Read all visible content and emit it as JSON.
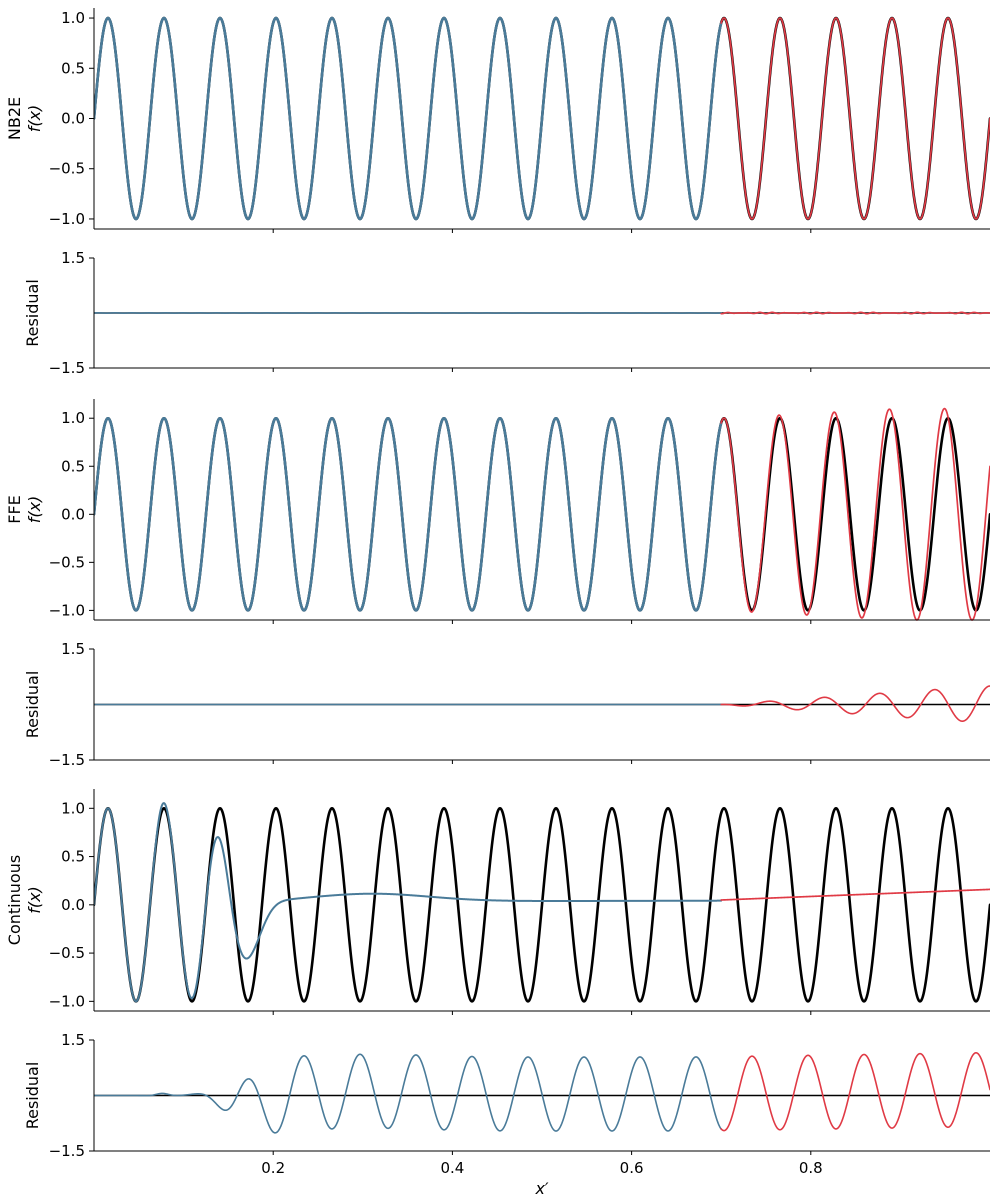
{
  "chart_data": [
    {
      "type": "line",
      "ylabel_lines": [
        "NB2E",
        "f(x)"
      ],
      "ylim": [
        -1.1,
        1.1
      ],
      "yticks": [
        {
          "value": 1.0,
          "label": "1.0"
        },
        {
          "value": 0.5,
          "label": "0.5"
        },
        {
          "value": 0.0,
          "label": "0.0"
        },
        {
          "value": -0.5,
          "label": "−0.5"
        },
        {
          "value": -1.0,
          "label": "−1.0"
        }
      ],
      "xlim": [
        0,
        1
      ],
      "x_split": 0.7,
      "truth": {
        "color": "#000000",
        "frequency": 16,
        "amplitude": 1.0
      },
      "interpolation": {
        "color": "#4a7b99",
        "model": "exact"
      },
      "extrapolation": {
        "color": "#e03a45",
        "model": "exact"
      }
    },
    {
      "type": "line",
      "ylabel": "Residual",
      "ylim": [
        -1.5,
        1.5
      ],
      "yticks": [
        {
          "value": 1.5,
          "label": "1.5"
        },
        {
          "value": -1.5,
          "label": "−1.5"
        }
      ],
      "xlim": [
        0,
        1
      ],
      "x_split": 0.7,
      "zero_line_color": "#000000",
      "interpolation": {
        "color": "#4a7b99",
        "residual_amplitude": 0.0
      },
      "extrapolation": {
        "color": "#e03a45",
        "residual_amplitude": 0.02
      }
    },
    {
      "type": "line",
      "ylabel_lines": [
        "FFE",
        "f(x)"
      ],
      "ylim": [
        -1.1,
        1.2
      ],
      "yticks": [
        {
          "value": 1.0,
          "label": "1.0"
        },
        {
          "value": 0.5,
          "label": "0.5"
        },
        {
          "value": 0.0,
          "label": "0.0"
        },
        {
          "value": -0.5,
          "label": "−0.5"
        },
        {
          "value": -1.0,
          "label": "−1.0"
        }
      ],
      "xlim": [
        0,
        1
      ],
      "x_split": 0.7,
      "truth": {
        "color": "#000000",
        "frequency": 16,
        "amplitude": 1.0
      },
      "interpolation": {
        "color": "#4a7b99",
        "model": "exact"
      },
      "extrapolation": {
        "color": "#e03a45",
        "model": "drifting",
        "frequency": 16.25,
        "amplitude_end": 1.1
      }
    },
    {
      "type": "line",
      "ylabel": "Residual",
      "ylim": [
        -1.5,
        1.5
      ],
      "yticks": [
        {
          "value": 1.5,
          "label": "1.5"
        },
        {
          "value": -1.5,
          "label": "−1.5"
        }
      ],
      "xlim": [
        0,
        1
      ],
      "x_split": 0.7,
      "zero_line_color": "#000000",
      "interpolation": {
        "color": "#4a7b99",
        "residual_amplitude": 0.0
      },
      "extrapolation": {
        "color": "#e03a45",
        "residual_amplitude_end": 0.48
      }
    },
    {
      "type": "line",
      "ylabel_lines": [
        "Continuous",
        "f(x)"
      ],
      "ylim": [
        -1.1,
        1.2
      ],
      "yticks": [
        {
          "value": 1.0,
          "label": "1.0"
        },
        {
          "value": 0.5,
          "label": "0.5"
        },
        {
          "value": 0.0,
          "label": "0.0"
        },
        {
          "value": -0.5,
          "label": "−0.5"
        },
        {
          "value": -1.0,
          "label": "−1.0"
        }
      ],
      "xlim": [
        0,
        1
      ],
      "x_split": 0.7,
      "truth": {
        "color": "#000000",
        "frequency": 16,
        "amplitude": 1.0
      },
      "interpolation": {
        "color": "#4a7b99",
        "model": "smooth-fit"
      },
      "extrapolation": {
        "color": "#e03a45",
        "model": "linear",
        "start": 0.05,
        "end": 0.16
      }
    },
    {
      "type": "line",
      "ylabel": "Residual",
      "ylim": [
        -1.5,
        1.5
      ],
      "yticks": [
        {
          "value": 1.5,
          "label": "1.5"
        },
        {
          "value": -1.5,
          "label": "−1.5"
        }
      ],
      "xlim": [
        0,
        1
      ],
      "x_split": 0.7,
      "zero_line_color": "#000000",
      "xlabel": "x′",
      "xticks": [
        {
          "value": 0.2,
          "label": "0.2"
        },
        {
          "value": 0.4,
          "label": "0.4"
        },
        {
          "value": 0.6,
          "label": "0.6"
        },
        {
          "value": 0.8,
          "label": "0.8"
        }
      ],
      "interpolation": {
        "color": "#4a7b99",
        "residual_amplitude": 1.1
      },
      "extrapolation": {
        "color": "#e03a45",
        "residual_amplitude": 1.0
      }
    }
  ]
}
